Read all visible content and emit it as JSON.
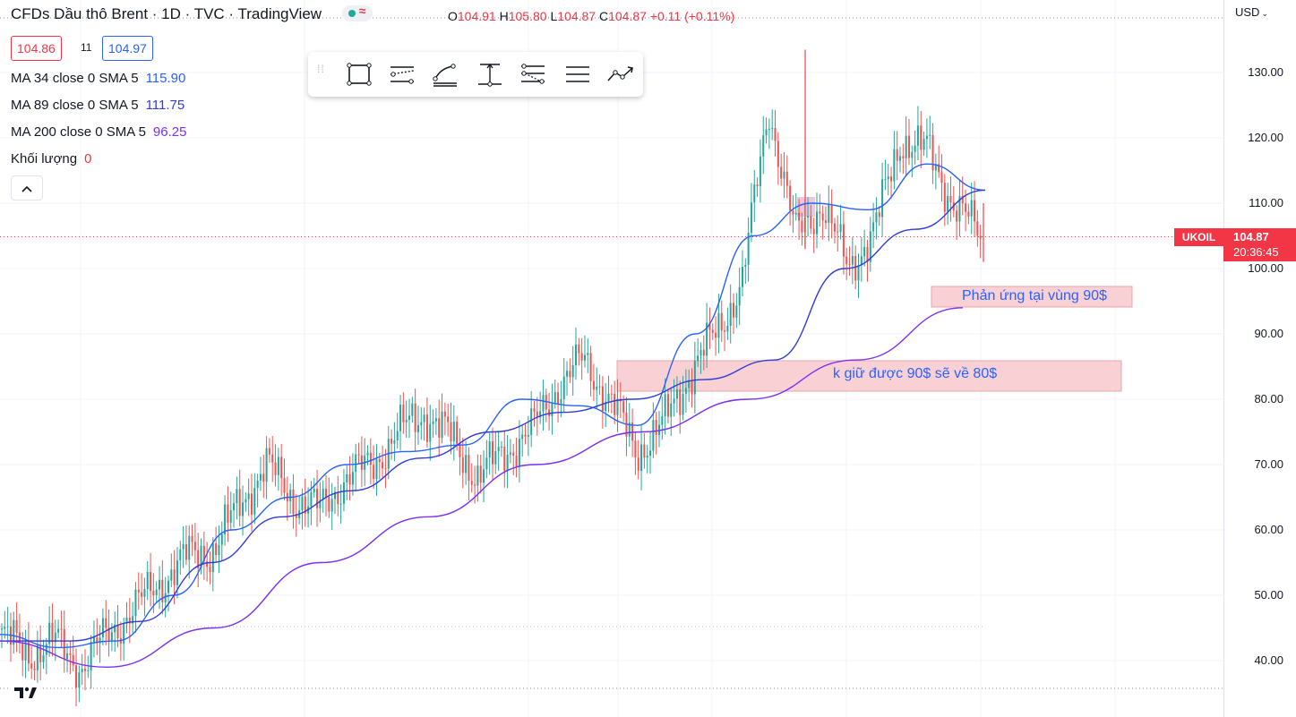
{
  "legend": {
    "title": "CFDs Dầu thô Brent · 1D · TVC · TradingView",
    "status_symbol": "≈",
    "ohlc": {
      "o_label": "O",
      "o": "104.91",
      "h_label": "H",
      "h": "105.80",
      "l_label": "L",
      "l": "104.87",
      "c_label": "C",
      "c": "104.87",
      "change": "+0.11 (+0.11%)"
    }
  },
  "trade": {
    "sell": "104.86",
    "spread": "11",
    "buy": "104.97"
  },
  "indicators": [
    {
      "label": "MA 34 close 0 SMA 5",
      "value": "115.90",
      "color": "#2962ff"
    },
    {
      "label": "MA 89 close 0 SMA 5",
      "value": "111.75",
      "color": "#2f3cd8"
    },
    {
      "label": "MA 200 close 0 SMA 5",
      "value": "96.25",
      "color": "#7b2ff7"
    },
    {
      "label": "Khối lượng",
      "value": "0",
      "color": "#f23645"
    }
  ],
  "collapse_icon": "chevron-up-icon",
  "toolbar": {
    "tools": [
      "drag-handle-icon",
      "rectangle-icon",
      "parallel-channel-icon",
      "trend-line-icon",
      "vertical-measure-icon",
      "fib-retracement-icon",
      "horizontal-lines-icon",
      "path-icon"
    ]
  },
  "price_axis": {
    "currency": "USD",
    "ticks": [
      "130.00",
      "120.00",
      "110.00",
      "100.00",
      "90.00",
      "80.00",
      "70.00",
      "60.00",
      "50.00",
      "40.00"
    ],
    "symbol_tag": "UKOIL",
    "last_price": "104.87",
    "countdown": "20:36:45"
  },
  "annotations": [
    {
      "text": "Phản ứng tại vùng 90$"
    },
    {
      "text": "k giữ được 90$ sẽ về 80$"
    }
  ],
  "colors": {
    "up": "#26a69a",
    "down": "#ef5350",
    "ma34": "#2962ff",
    "ma89": "#2f3cd8",
    "ma200": "#7b2ff7",
    "zone": "#f8c9cd",
    "accent": "#f23645"
  },
  "chart_data": {
    "type": "candlestick",
    "symbol": "UKOIL",
    "ylim": [
      35,
      140
    ],
    "series": [
      {
        "name": "MA 34 close 0 SMA 5",
        "values_approx": [
          44,
          42,
          43,
          50,
          60,
          65,
          70,
          72,
          73,
          80,
          79,
          76,
          90,
          105,
          110,
          109,
          116,
          112
        ]
      },
      {
        "name": "MA 89 close 0 SMA 5",
        "values_approx": [
          43,
          43,
          46,
          55,
          62,
          66,
          71,
          75,
          78,
          80,
          83,
          86,
          100,
          106,
          112
        ]
      },
      {
        "name": "MA 200 close 0 SMA 5",
        "values_approx": [
          43,
          39,
          45,
          55,
          62,
          70,
          75,
          80,
          86,
          94
        ]
      }
    ],
    "closes_approx": [
      44,
      41,
      43,
      39,
      44,
      48,
      52,
      56,
      57,
      64,
      70,
      65,
      63,
      68,
      70,
      75,
      78,
      74,
      68,
      72,
      75,
      82,
      86,
      80,
      72,
      76,
      84,
      90,
      98,
      125,
      105,
      110,
      100,
      106,
      120,
      118,
      110,
      105
    ],
    "annotations": [
      "Phản ứng tại vùng 90$",
      "k giữ được 90$ sẽ về 80$"
    ]
  }
}
